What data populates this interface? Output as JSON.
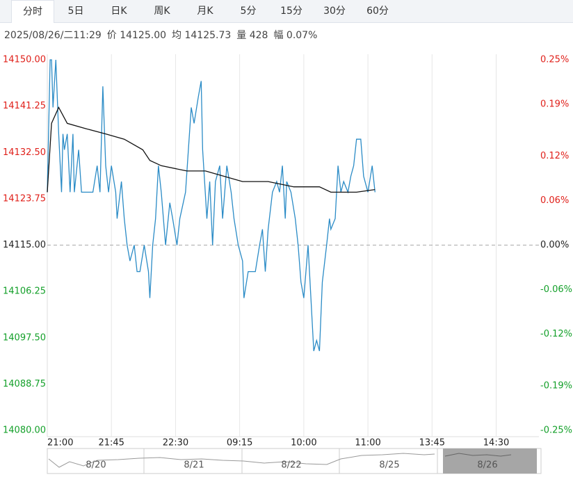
{
  "tabs": [
    "分时",
    "5日",
    "日K",
    "周K",
    "月K",
    "5分",
    "15分",
    "30分",
    "60分"
  ],
  "info": [
    "2025/08/26/二11:29",
    "价 14125.00",
    "均 14125.73",
    "量 428",
    "幅 0.07%"
  ],
  "chart_data": {
    "type": "line",
    "xlim": [
      0,
      345
    ],
    "xticks": [
      {
        "value": 0,
        "label": "21:00"
      },
      {
        "value": 45,
        "label": "21:45"
      },
      {
        "value": 90,
        "label": "22:30"
      },
      {
        "value": 135,
        "label": "09:15"
      },
      {
        "value": 180,
        "label": "10:00"
      },
      {
        "value": 225,
        "label": "11:00"
      },
      {
        "value": 270,
        "label": "13:45"
      },
      {
        "value": 315,
        "label": "14:30"
      }
    ],
    "ylim": [
      14080,
      14150
    ],
    "yticks": [
      {
        "value": 14150,
        "label": "14150.00"
      },
      {
        "value": 14141.25,
        "label": "14141.25"
      },
      {
        "value": 14132.5,
        "label": "14132.50"
      },
      {
        "value": 14123.75,
        "label": "14123.75"
      },
      {
        "value": 14115,
        "label": "14115.00"
      },
      {
        "value": 14106.25,
        "label": "14106.25"
      },
      {
        "value": 14097.5,
        "label": "14097.50"
      },
      {
        "value": 14088.75,
        "label": "14088.75"
      },
      {
        "value": 14080,
        "label": "14080.00"
      }
    ],
    "y2lim": [
      -0.25,
      0.25
    ],
    "y2ticks": [
      {
        "value": 0.25,
        "label": "0.25%"
      },
      {
        "value": 0.19,
        "label": "0.19%"
      },
      {
        "value": 0.12,
        "label": "0.12%"
      },
      {
        "value": 0.06,
        "label": "0.06%"
      },
      {
        "value": 0,
        "label": "0.00%"
      },
      {
        "value": -0.06,
        "label": "-0.06%"
      },
      {
        "value": -0.12,
        "label": "-0.12%"
      },
      {
        "value": -0.19,
        "label": "-0.19%"
      },
      {
        "value": -0.25,
        "label": "-0.25%"
      }
    ],
    "up_color": "#e0201a",
    "down_color": "#14a02a",
    "series": [
      {
        "color": "#2a8bc6",
        "x": [
          0,
          2,
          3,
          4,
          6,
          8,
          10,
          11,
          12,
          14,
          16,
          18,
          19,
          22,
          24,
          27,
          32,
          35,
          37,
          39,
          41,
          43,
          45,
          48,
          49,
          52,
          54,
          56,
          58,
          61,
          63,
          65,
          68,
          71,
          72,
          74,
          76,
          78,
          80,
          83,
          86,
          88,
          91,
          93,
          97,
          99,
          101,
          103,
          106,
          108,
          109,
          112,
          114,
          116,
          118,
          121,
          123,
          126,
          129,
          131,
          134,
          137,
          138,
          141,
          144,
          146,
          149,
          151,
          153,
          155,
          158,
          161,
          163,
          165,
          167,
          168,
          171,
          174,
          176,
          178,
          180,
          183,
          185,
          187,
          189,
          191,
          193,
          196,
          198,
          199,
          202,
          204,
          206,
          208,
          211,
          213,
          215,
          217,
          220,
          222,
          225,
          228,
          230
        ],
        "values": [
          14125,
          14150,
          14150,
          14141,
          14150,
          14136,
          14125,
          14136,
          14133,
          14136,
          14125,
          14136,
          14125,
          14133,
          14125,
          14125,
          14125,
          14130,
          14125,
          14145,
          14130,
          14125,
          14130,
          14125,
          14120,
          14127,
          14120,
          14115,
          14112,
          14115,
          14110,
          14110,
          14115,
          14110,
          14105,
          14115,
          14120,
          14130,
          14125,
          14115,
          14123,
          14120,
          14115,
          14120,
          14125,
          14133,
          14141,
          14138,
          14143,
          14146,
          14133,
          14120,
          14127,
          14115,
          14127,
          14130,
          14120,
          14130,
          14125,
          14120,
          14115,
          14112,
          14105,
          14110,
          14110,
          14110,
          14115,
          14118,
          14110,
          14118,
          14125,
          14127,
          14125,
          14130,
          14120,
          14127,
          14125,
          14120,
          14115,
          14108,
          14105,
          14115,
          14105,
          14095,
          14097,
          14095,
          14108,
          14115,
          14120,
          14118,
          14120,
          14130,
          14125,
          14127,
          14125,
          14128,
          14130,
          14135,
          14135,
          14128,
          14125,
          14130,
          14125
        ]
      },
      {
        "color": "#111111",
        "x": [
          0,
          3,
          8,
          14,
          27,
          41,
          54,
          67,
          72,
          80,
          98,
          111,
          124,
          137,
          155,
          173,
          182,
          191,
          199,
          217,
          230
        ],
        "values": [
          14125,
          14138,
          14141,
          14138,
          14137,
          14136,
          14135,
          14133,
          14131,
          14130,
          14129,
          14129,
          14128,
          14127,
          14127,
          14126,
          14126,
          14126,
          14125,
          14125,
          14125.5
        ]
      }
    ]
  },
  "navigator": {
    "dates": [
      "8/20",
      "8/21",
      "8/22",
      "8/25",
      "8/26"
    ]
  }
}
